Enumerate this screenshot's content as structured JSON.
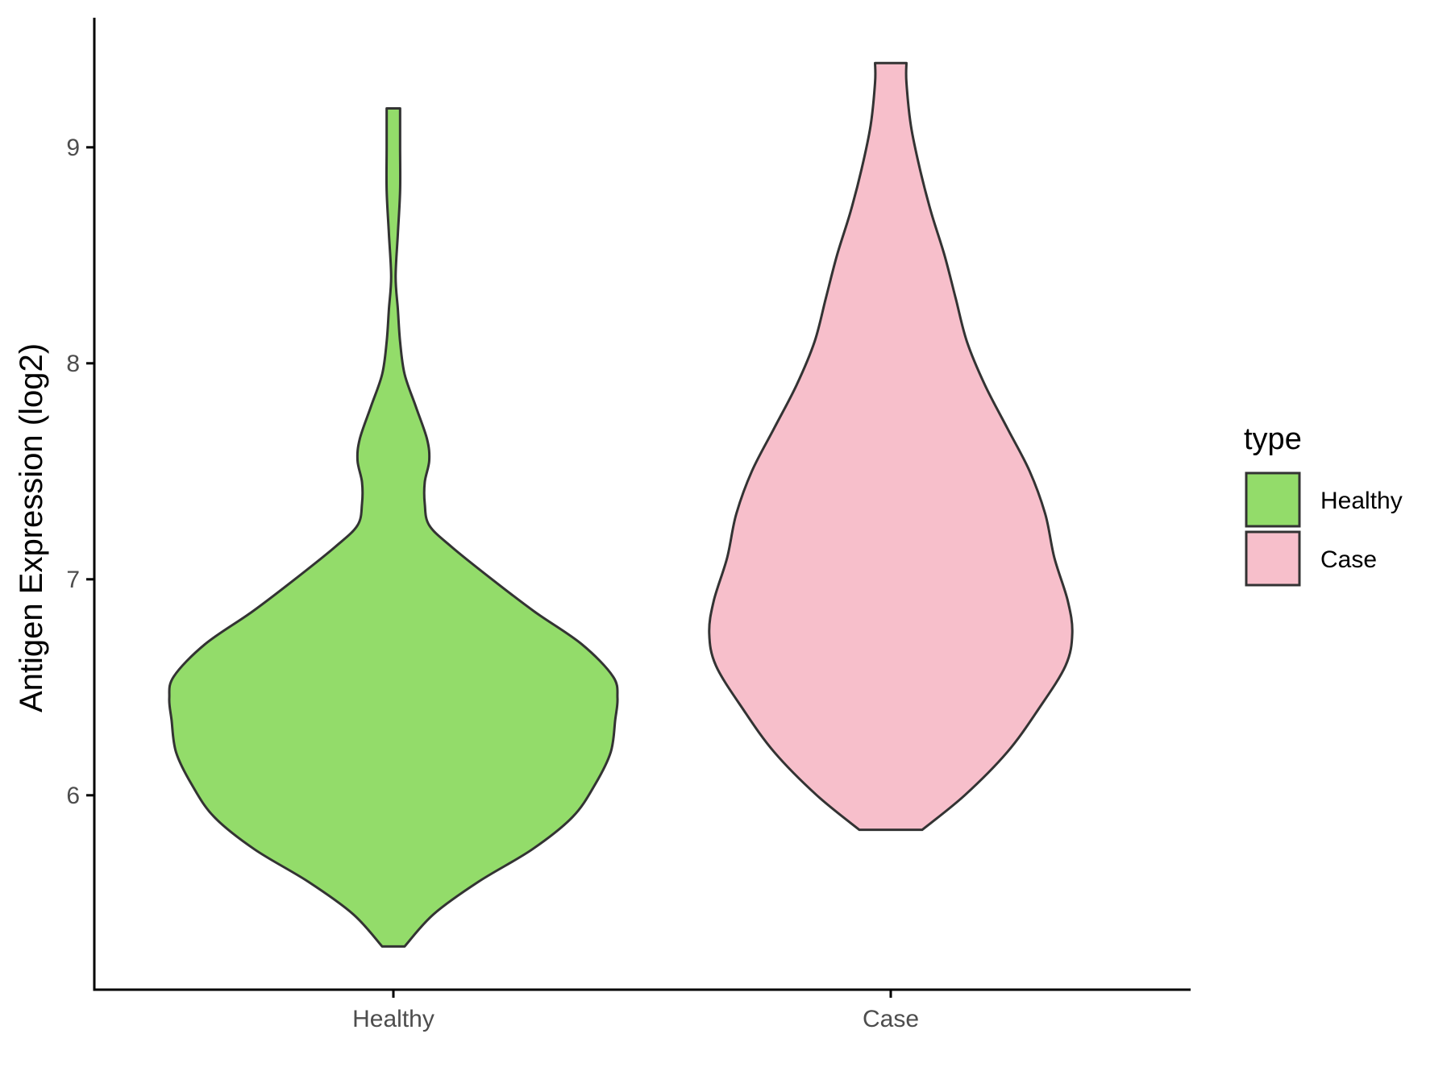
{
  "chart_data": {
    "type": "violin",
    "title": "",
    "xlabel": "",
    "ylabel": "Antigen Expression (log2)",
    "categories": [
      "Healthy",
      "Case"
    ],
    "ylim": [
      5.1,
      9.6
    ],
    "yticks": [
      6,
      7,
      8,
      9
    ],
    "grid": false,
    "legend": {
      "title": "type",
      "position": "right",
      "entries": [
        "Healthy",
        "Case"
      ]
    },
    "series": [
      {
        "name": "Healthy",
        "color": "#93dc6a",
        "min": 5.3,
        "max": 9.18,
        "density": [
          [
            5.3,
            0.05
          ],
          [
            5.45,
            0.18
          ],
          [
            5.6,
            0.38
          ],
          [
            5.75,
            0.62
          ],
          [
            5.9,
            0.8
          ],
          [
            6.05,
            0.9
          ],
          [
            6.2,
            0.97
          ],
          [
            6.35,
            0.99
          ],
          [
            6.45,
            1.0
          ],
          [
            6.55,
            0.98
          ],
          [
            6.7,
            0.84
          ],
          [
            6.85,
            0.63
          ],
          [
            7.0,
            0.44
          ],
          [
            7.15,
            0.26
          ],
          [
            7.25,
            0.16
          ],
          [
            7.35,
            0.14
          ],
          [
            7.45,
            0.14
          ],
          [
            7.55,
            0.16
          ],
          [
            7.65,
            0.15
          ],
          [
            7.8,
            0.1
          ],
          [
            7.95,
            0.05
          ],
          [
            8.1,
            0.03
          ],
          [
            8.25,
            0.02
          ],
          [
            8.4,
            0.01
          ],
          [
            8.6,
            0.02
          ],
          [
            8.8,
            0.03
          ],
          [
            9.0,
            0.03
          ],
          [
            9.18,
            0.03
          ]
        ]
      },
      {
        "name": "Case",
        "color": "#f7bfcb",
        "min": 5.84,
        "max": 9.39,
        "density": [
          [
            5.84,
            0.14
          ],
          [
            6.0,
            0.33
          ],
          [
            6.2,
            0.52
          ],
          [
            6.4,
            0.66
          ],
          [
            6.6,
            0.78
          ],
          [
            6.75,
            0.81
          ],
          [
            6.9,
            0.79
          ],
          [
            7.1,
            0.73
          ],
          [
            7.3,
            0.69
          ],
          [
            7.5,
            0.62
          ],
          [
            7.7,
            0.52
          ],
          [
            7.9,
            0.42
          ],
          [
            8.1,
            0.34
          ],
          [
            8.3,
            0.29
          ],
          [
            8.5,
            0.24
          ],
          [
            8.7,
            0.18
          ],
          [
            8.9,
            0.13
          ],
          [
            9.1,
            0.09
          ],
          [
            9.3,
            0.07
          ],
          [
            9.39,
            0.07
          ]
        ]
      }
    ]
  }
}
